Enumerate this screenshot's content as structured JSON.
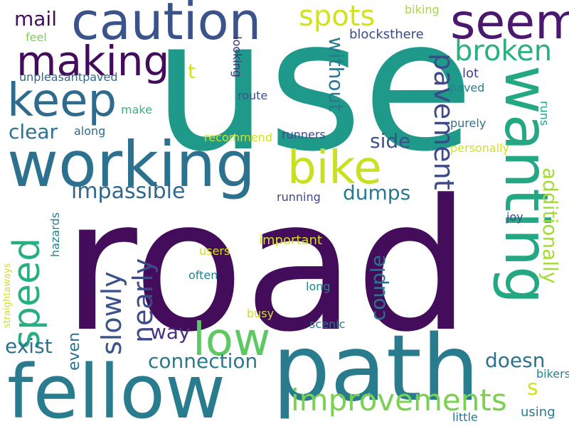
{
  "background": "#ffffff",
  "words": [
    {
      "text": "road",
      "color": "#440d5b"
    },
    {
      "text": "use",
      "color": "#1f9a8a"
    },
    {
      "text": "path",
      "color": "#287c8e"
    },
    {
      "text": "fellow",
      "color": "#287c8e"
    },
    {
      "text": "working",
      "color": "#2c718e"
    },
    {
      "text": "wanting",
      "color": "#23a883"
    },
    {
      "text": "caution",
      "color": "#3b528b"
    },
    {
      "text": "seem",
      "color": "#4a186e"
    },
    {
      "text": "making",
      "color": "#440d5b"
    },
    {
      "text": "keep",
      "color": "#2f6b8e"
    },
    {
      "text": "bike",
      "color": "#c8e020"
    },
    {
      "text": "low",
      "color": "#5ec962"
    },
    {
      "text": "speed",
      "color": "#29af7f"
    },
    {
      "text": "improvements",
      "color": "#7ad151"
    },
    {
      "text": "pavement",
      "color": "#3e4989"
    },
    {
      "text": "broken",
      "color": "#2bb07f"
    },
    {
      "text": "spots",
      "color": "#d2e21b"
    },
    {
      "text": "slowly",
      "color": "#3b528b"
    },
    {
      "text": "nearly",
      "color": "#3e4989"
    },
    {
      "text": "impassible",
      "color": "#31688e"
    },
    {
      "text": "additionally",
      "color": "#a5db36"
    },
    {
      "text": "connection",
      "color": "#2a788e"
    },
    {
      "text": "couple",
      "color": "#2c728e"
    },
    {
      "text": "clear",
      "color": "#2c728e"
    },
    {
      "text": "side",
      "color": "#3b528b"
    },
    {
      "text": "dumps",
      "color": "#2a788e"
    },
    {
      "text": "without",
      "color": "#2a788e"
    },
    {
      "text": "exist",
      "color": "#2c728e"
    },
    {
      "text": "way",
      "color": "#46327e"
    },
    {
      "text": "doesn",
      "color": "#2c728e"
    },
    {
      "text": "even",
      "color": "#2c728e"
    },
    {
      "text": "s",
      "color": "#d2e21b"
    },
    {
      "text": "mail",
      "color": "#440d5b"
    },
    {
      "text": "t",
      "color": "#d2e21b"
    },
    {
      "text": "feel",
      "color": "#7ad151"
    },
    {
      "text": "unpleasantpaved",
      "color": "#31688e"
    },
    {
      "text": "blocksthere",
      "color": "#3e4989"
    },
    {
      "text": "biking",
      "color": "#a5db36"
    },
    {
      "text": "looking",
      "color": "#472d7b"
    },
    {
      "text": "route",
      "color": "#3b528b"
    },
    {
      "text": "lot",
      "color": "#424086"
    },
    {
      "text": "paved",
      "color": "#26828e"
    },
    {
      "text": "make",
      "color": "#35b779"
    },
    {
      "text": "along",
      "color": "#31688e"
    },
    {
      "text": "recommend",
      "color": "#d2e21b"
    },
    {
      "text": "runners",
      "color": "#3e4989"
    },
    {
      "text": "purely",
      "color": "#2c728e"
    },
    {
      "text": "runs",
      "color": "#1fa188"
    },
    {
      "text": "personally",
      "color": "#d2e21b"
    },
    {
      "text": "running",
      "color": "#3e4989"
    },
    {
      "text": "hazards",
      "color": "#26828e"
    },
    {
      "text": "straightaways",
      "color": "#d2e21b"
    },
    {
      "text": "important",
      "color": "#d2e21b"
    },
    {
      "text": "users",
      "color": "#d2e21b"
    },
    {
      "text": "often",
      "color": "#26828e"
    },
    {
      "text": "long",
      "color": "#26828e"
    },
    {
      "text": "busy",
      "color": "#d2e21b"
    },
    {
      "text": "scenic",
      "color": "#2a788e"
    },
    {
      "text": "joy",
      "color": "#3e4989"
    },
    {
      "text": "bikers",
      "color": "#26828e"
    },
    {
      "text": "using",
      "color": "#2a788e"
    },
    {
      "text": "little",
      "color": "#2c728e"
    }
  ]
}
